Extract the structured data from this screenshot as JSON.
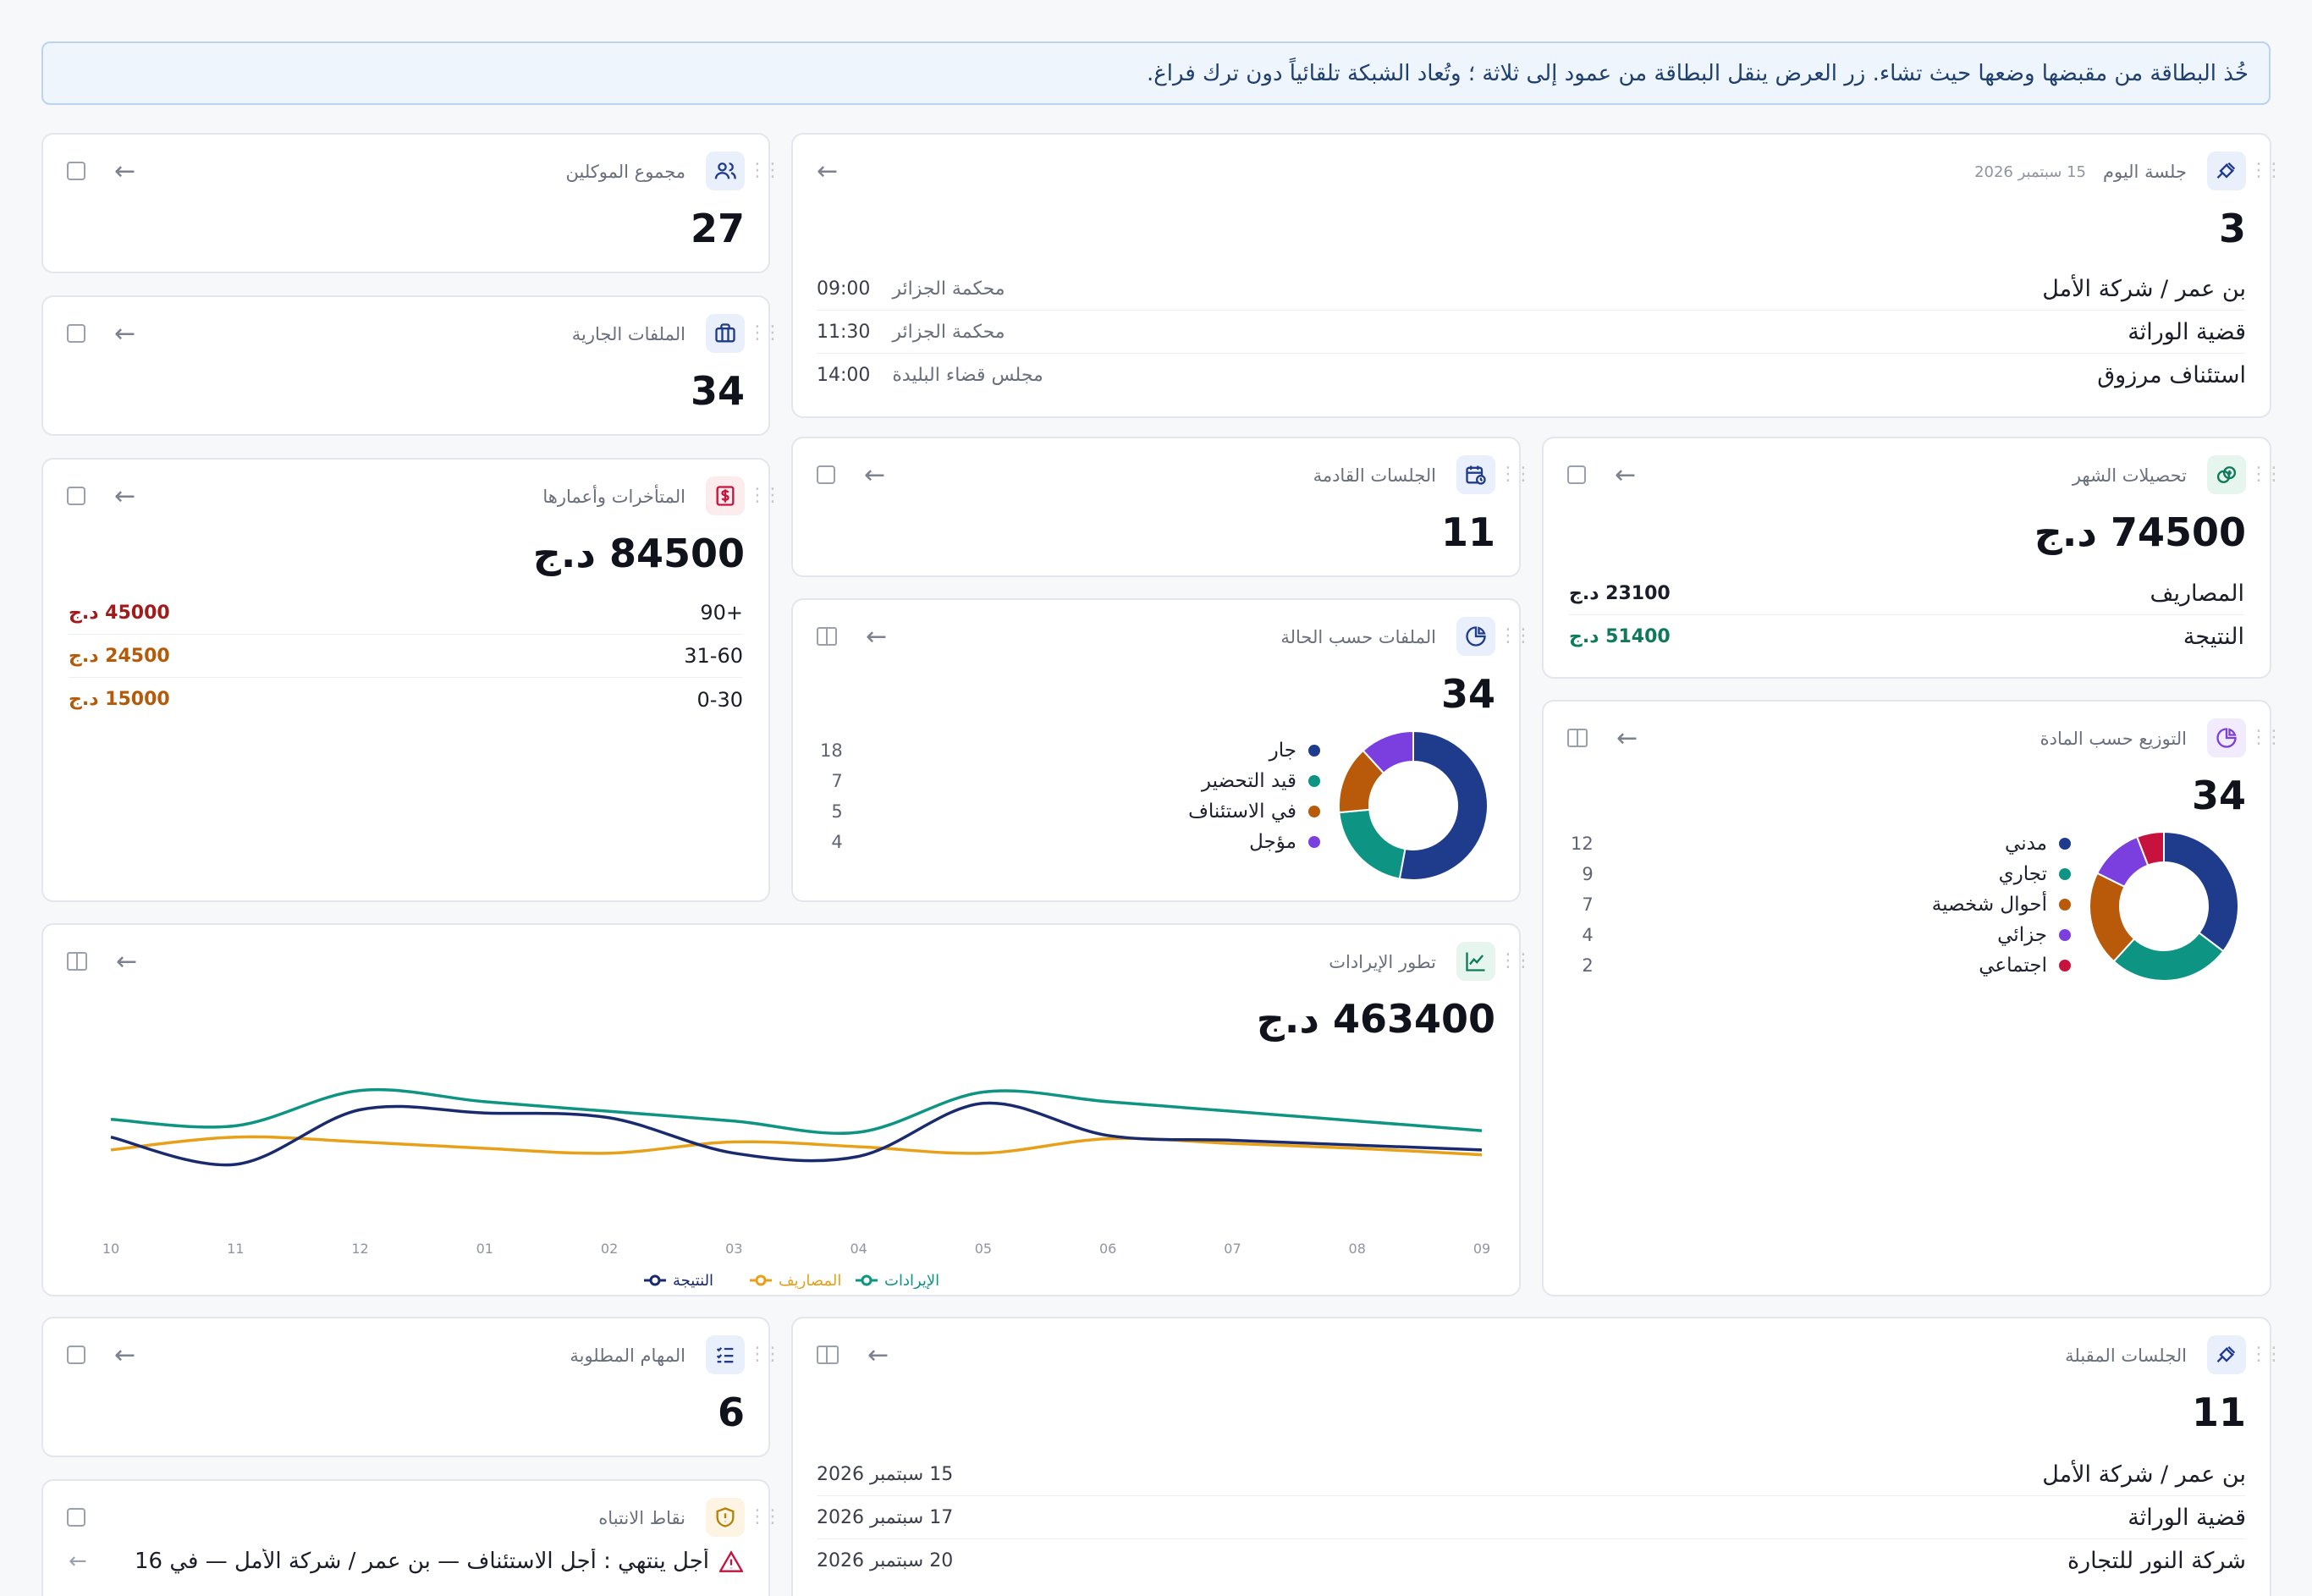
{
  "banner": "خُذ البطاقة من مقبضها وضعها حيث تشاء. زر العرض ينقل البطاقة من عمود إلى ثلاثة ؛ وتُعاد الشبكة تلقائياً دون ترك فراغ.",
  "today": {
    "title": "جلسة اليوم",
    "date": "15 سبتمبر 2026",
    "count": "3",
    "rows": [
      {
        "party": "بن عمر / شركة الأمل",
        "court": "محكمة الجزائر",
        "time": "09:00"
      },
      {
        "party": "قضية الوراثة",
        "court": "محكمة الجزائر",
        "time": "11:30"
      },
      {
        "party": "استئناف مرزوق",
        "court": "مجلس قضاء البليدة",
        "time": "14:00"
      }
    ]
  },
  "clients": {
    "title": "مجموع الموكلين",
    "count": "27"
  },
  "open_files": {
    "title": "الملفات الجارية",
    "count": "34"
  },
  "arrears": {
    "title": "المتأخرات وأعمارها",
    "total": "84500 د.ج",
    "rows": [
      {
        "bucket": "+90",
        "amount": "45000 د.ج",
        "color": "#a11b1b"
      },
      {
        "bucket": "31-60",
        "amount": "24500 د.ج",
        "color": "#b55a08"
      },
      {
        "bucket": "0-30",
        "amount": "15000 د.ج",
        "color": "#b55a08"
      }
    ]
  },
  "upcoming": {
    "title": "الجلسات القادمة",
    "count": "11"
  },
  "collections": {
    "title": "تحصيلات الشهر",
    "total": "74500 د.ج",
    "rows": [
      {
        "label": "المصاريف",
        "amount": "23100 د.ج",
        "color": "#1b1d28"
      },
      {
        "label": "النتيجة",
        "amount": "51400 د.ج",
        "color": "#0e7a5b"
      }
    ]
  },
  "files_by_status": {
    "title": "الملفات حسب الحالة",
    "count": "34",
    "items": [
      {
        "label": "جار",
        "value": 18,
        "color": "#1f3b8c"
      },
      {
        "label": "قيد التحضير",
        "value": 7,
        "color": "#0e9483"
      },
      {
        "label": "في الاستئناف",
        "value": 5,
        "color": "#b85a09"
      },
      {
        "label": "مؤجل",
        "value": 4,
        "color": "#7b3fe0"
      }
    ]
  },
  "by_subject": {
    "title": "التوزيع حسب المادة",
    "count": "34",
    "items": [
      {
        "label": "مدني",
        "value": 12,
        "color": "#1f3b8c"
      },
      {
        "label": "تجاري",
        "value": 9,
        "color": "#0e9483"
      },
      {
        "label": "أحوال شخصية",
        "value": 7,
        "color": "#b85a09"
      },
      {
        "label": "جزائي",
        "value": 4,
        "color": "#7b3fe0"
      },
      {
        "label": "اجتماعي",
        "value": 2,
        "color": "#c8123e"
      }
    ]
  },
  "revenue": {
    "title": "تطور الإيرادات",
    "total": "463400 د.ج"
  },
  "chart_data": {
    "type": "line",
    "x": [
      "10",
      "11",
      "12",
      "01",
      "02",
      "03",
      "04",
      "05",
      "06",
      "07",
      "08",
      "09"
    ],
    "series": [
      {
        "name": "الإيرادات",
        "color": "#0e9483",
        "values": [
          58,
          54,
          76,
          69,
          63,
          57,
          50,
          75,
          69,
          63,
          57,
          51
        ]
      },
      {
        "name": "المصاريف",
        "color": "#e8a019",
        "values": [
          39,
          47,
          44,
          40,
          37,
          44,
          41,
          37,
          46,
          43,
          40,
          36
        ]
      },
      {
        "name": "النتيجة",
        "color": "#1a2a6e",
        "values": [
          47,
          30,
          64,
          62,
          59,
          37,
          35,
          68,
          48,
          45,
          42,
          39
        ]
      }
    ],
    "ylim": [
      0,
      100
    ],
    "legend": "bottom"
  },
  "tasks": {
    "title": "المهام المطلوبة",
    "count": "6"
  },
  "alerts": {
    "title": "نقاط الانتباه",
    "line": "أجل ينتهي : أجل الاستئناف — بن عمر / شركة الأمل — في 16"
  },
  "next_sessions": {
    "title": "الجلسات المقبلة",
    "count": "11",
    "rows": [
      {
        "party": "بن عمر / شركة الأمل",
        "date": "15 سبتمبر 2026"
      },
      {
        "party": "قضية الوراثة",
        "date": "17 سبتمبر 2026"
      },
      {
        "party": "شركة النور للتجارة",
        "date": "20 سبتمبر 2026"
      }
    ]
  }
}
